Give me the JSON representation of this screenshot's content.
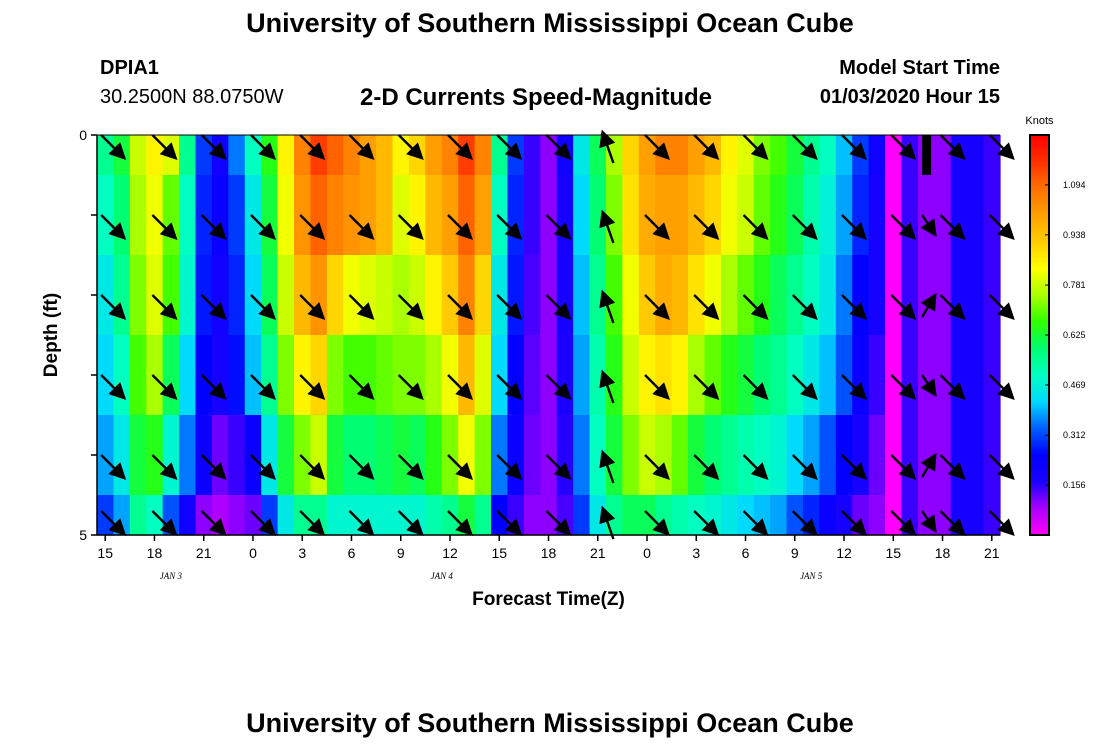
{
  "header": {
    "title": "University of Southern Mississippi Ocean Cube",
    "station": "DPIA1",
    "coords": "30.2500N 88.0750W",
    "subtitle": "2-D Currents Speed-Magnitude",
    "model_start_label": "Model Start Time",
    "model_start_value": "01/03/2020 Hour 15"
  },
  "footer": {
    "title": "University of Southern Mississippi Ocean Cube"
  },
  "colors": {
    "colormap": [
      "#ff00ff",
      "#aa00ff",
      "#1a00ff",
      "#0000ff",
      "#0060ff",
      "#00d8ff",
      "#00ffc0",
      "#00ff70",
      "#30ff00",
      "#aaff00",
      "#ffff00",
      "#ffcc00",
      "#ffa000",
      "#ff7000",
      "#ff3000",
      "#ff0000"
    ],
    "arrow": "#000000",
    "missing_bar": "#000000"
  },
  "chart_data": {
    "type": "heatmap",
    "title": "2-D Currents Speed-Magnitude",
    "xlabel": "Forecast Time(Z)",
    "ylabel": "Depth (ft)",
    "ylim": [
      0,
      5
    ],
    "y_tick_labels": [
      "0",
      "5"
    ],
    "y_ticks_minor": [
      1,
      2,
      3,
      4
    ],
    "hours": [
      15,
      16,
      17,
      18,
      19,
      20,
      21,
      22,
      23,
      0,
      1,
      2,
      3,
      4,
      5,
      6,
      7,
      8,
      9,
      10,
      11,
      12,
      13,
      14,
      15,
      16,
      17,
      18,
      19,
      20,
      21,
      22,
      23,
      0,
      1,
      2,
      3,
      4,
      5,
      6,
      7,
      8,
      9,
      10,
      11,
      12,
      13,
      14,
      15,
      16,
      17,
      18,
      19,
      20,
      21
    ],
    "x_tick_labels": [
      "15",
      "18",
      "21",
      "0",
      "3",
      "6",
      "9",
      "12",
      "15",
      "18",
      "21",
      "0",
      "3",
      "6",
      "9",
      "12",
      "15",
      "18",
      "21"
    ],
    "x_tick_index": [
      0,
      3,
      6,
      9,
      12,
      15,
      18,
      21,
      24,
      27,
      30,
      33,
      36,
      39,
      42,
      45,
      48,
      51,
      54
    ],
    "date_labels": [
      {
        "text": "JAN 3",
        "at_hour_index": 4.5
      },
      {
        "text": "JAN 4",
        "at_hour_index": 21
      },
      {
        "text": "JAN 5",
        "at_hour_index": 43.5
      }
    ],
    "colorbar": {
      "unit": "Knots",
      "range": [
        0,
        1.25
      ],
      "ticks": [
        0.156,
        0.312,
        0.469,
        0.625,
        0.781,
        0.938,
        1.094
      ]
    },
    "layers": [
      {
        "depth_bin": "0.0-0.5",
        "speed_knots": [
          0.55,
          0.62,
          0.78,
          0.85,
          0.8,
          0.55,
          0.3,
          0.2,
          0.35,
          0.5,
          0.65,
          0.85,
          1.05,
          1.15,
          1.1,
          1.05,
          1.0,
          0.95,
          0.85,
          0.9,
          1.0,
          1.05,
          1.15,
          1.05,
          0.55,
          0.3,
          0.15,
          0.1,
          0.2,
          0.45,
          0.6,
          0.75,
          0.9,
          1.0,
          1.05,
          1.05,
          1.0,
          0.95,
          0.85,
          0.8,
          0.72,
          0.68,
          0.62,
          0.55,
          0.5,
          0.4,
          0.3,
          0.2,
          0.0,
          0.15,
          0.1,
          0.1,
          0.18,
          0.18,
          0.15
        ]
      },
      {
        "depth_bin": "0.5-1.5",
        "speed_knots": [
          0.5,
          0.58,
          0.75,
          0.82,
          0.7,
          0.5,
          0.28,
          0.22,
          0.3,
          0.45,
          0.62,
          0.82,
          1.02,
          1.1,
          1.05,
          1.02,
          1.0,
          0.95,
          0.8,
          0.85,
          0.95,
          1.0,
          1.1,
          1.0,
          0.5,
          0.28,
          0.15,
          0.1,
          0.18,
          0.42,
          0.58,
          0.72,
          0.88,
          0.98,
          1.0,
          1.0,
          0.95,
          0.9,
          0.82,
          0.78,
          0.7,
          0.65,
          0.6,
          0.52,
          0.47,
          0.38,
          0.28,
          0.18,
          0.0,
          0.15,
          0.1,
          0.1,
          0.18,
          0.18,
          0.15
        ]
      },
      {
        "depth_bin": "1.5-2.5",
        "speed_knots": [
          0.45,
          0.55,
          0.72,
          0.8,
          0.68,
          0.48,
          0.27,
          0.2,
          0.28,
          0.42,
          0.6,
          0.78,
          0.95,
          1.02,
          0.9,
          0.82,
          0.8,
          0.78,
          0.75,
          0.78,
          0.85,
          0.92,
          1.05,
          0.9,
          0.45,
          0.27,
          0.14,
          0.1,
          0.18,
          0.4,
          0.55,
          0.68,
          0.82,
          0.92,
          0.98,
          0.95,
          0.88,
          0.82,
          0.75,
          0.7,
          0.65,
          0.6,
          0.55,
          0.5,
          0.45,
          0.35,
          0.25,
          0.18,
          0.0,
          0.15,
          0.1,
          0.1,
          0.18,
          0.18,
          0.15
        ]
      },
      {
        "depth_bin": "2.5-3.5",
        "speed_knots": [
          0.42,
          0.5,
          0.68,
          0.75,
          0.6,
          0.42,
          0.25,
          0.18,
          0.26,
          0.4,
          0.55,
          0.72,
          0.85,
          0.9,
          0.72,
          0.68,
          0.68,
          0.7,
          0.72,
          0.72,
          0.75,
          0.82,
          0.95,
          0.8,
          0.42,
          0.25,
          0.13,
          0.1,
          0.17,
          0.38,
          0.52,
          0.65,
          0.78,
          0.85,
          0.88,
          0.85,
          0.75,
          0.7,
          0.65,
          0.62,
          0.58,
          0.55,
          0.5,
          0.45,
          0.4,
          0.32,
          0.22,
          0.15,
          0.0,
          0.15,
          0.1,
          0.1,
          0.18,
          0.18,
          0.15
        ]
      },
      {
        "depth_bin": "3.5-4.5",
        "speed_knots": [
          0.38,
          0.45,
          0.62,
          0.65,
          0.48,
          0.35,
          0.22,
          0.12,
          0.15,
          0.22,
          0.45,
          0.62,
          0.72,
          0.78,
          0.62,
          0.58,
          0.58,
          0.6,
          0.62,
          0.6,
          0.65,
          0.72,
          0.82,
          0.72,
          0.35,
          0.22,
          0.12,
          0.1,
          0.16,
          0.35,
          0.5,
          0.62,
          0.72,
          0.78,
          0.75,
          0.7,
          0.62,
          0.58,
          0.55,
          0.52,
          0.5,
          0.48,
          0.42,
          0.38,
          0.32,
          0.25,
          0.18,
          0.12,
          0.0,
          0.15,
          0.1,
          0.1,
          0.18,
          0.18,
          0.15
        ]
      },
      {
        "depth_bin": "4.5-5.0",
        "speed_knots": [
          0.3,
          0.38,
          0.55,
          0.5,
          0.32,
          0.2,
          0.1,
          0.08,
          0.1,
          0.12,
          0.3,
          0.45,
          0.55,
          0.55,
          0.48,
          0.48,
          0.48,
          0.48,
          0.48,
          0.48,
          0.52,
          0.55,
          0.62,
          0.55,
          0.25,
          0.15,
          0.1,
          0.1,
          0.14,
          0.3,
          0.45,
          0.55,
          0.6,
          0.6,
          0.55,
          0.52,
          0.5,
          0.48,
          0.45,
          0.42,
          0.4,
          0.38,
          0.32,
          0.28,
          0.22,
          0.18,
          0.12,
          0.1,
          0.0,
          0.15,
          0.1,
          0.1,
          0.18,
          0.18,
          0.15
        ]
      }
    ],
    "vectors": {
      "depths_ft": [
        0,
        1,
        2,
        3,
        4,
        5
      ],
      "hours_index": [
        0,
        3,
        6,
        9,
        12,
        15,
        18,
        21,
        24,
        27,
        30,
        33,
        36,
        39,
        42,
        45,
        48,
        51,
        54
      ],
      "direction": "southeast (flooding) except around hour 21 Jan 4 and hour 17 Jan 5 where flow reverses northward"
    }
  }
}
